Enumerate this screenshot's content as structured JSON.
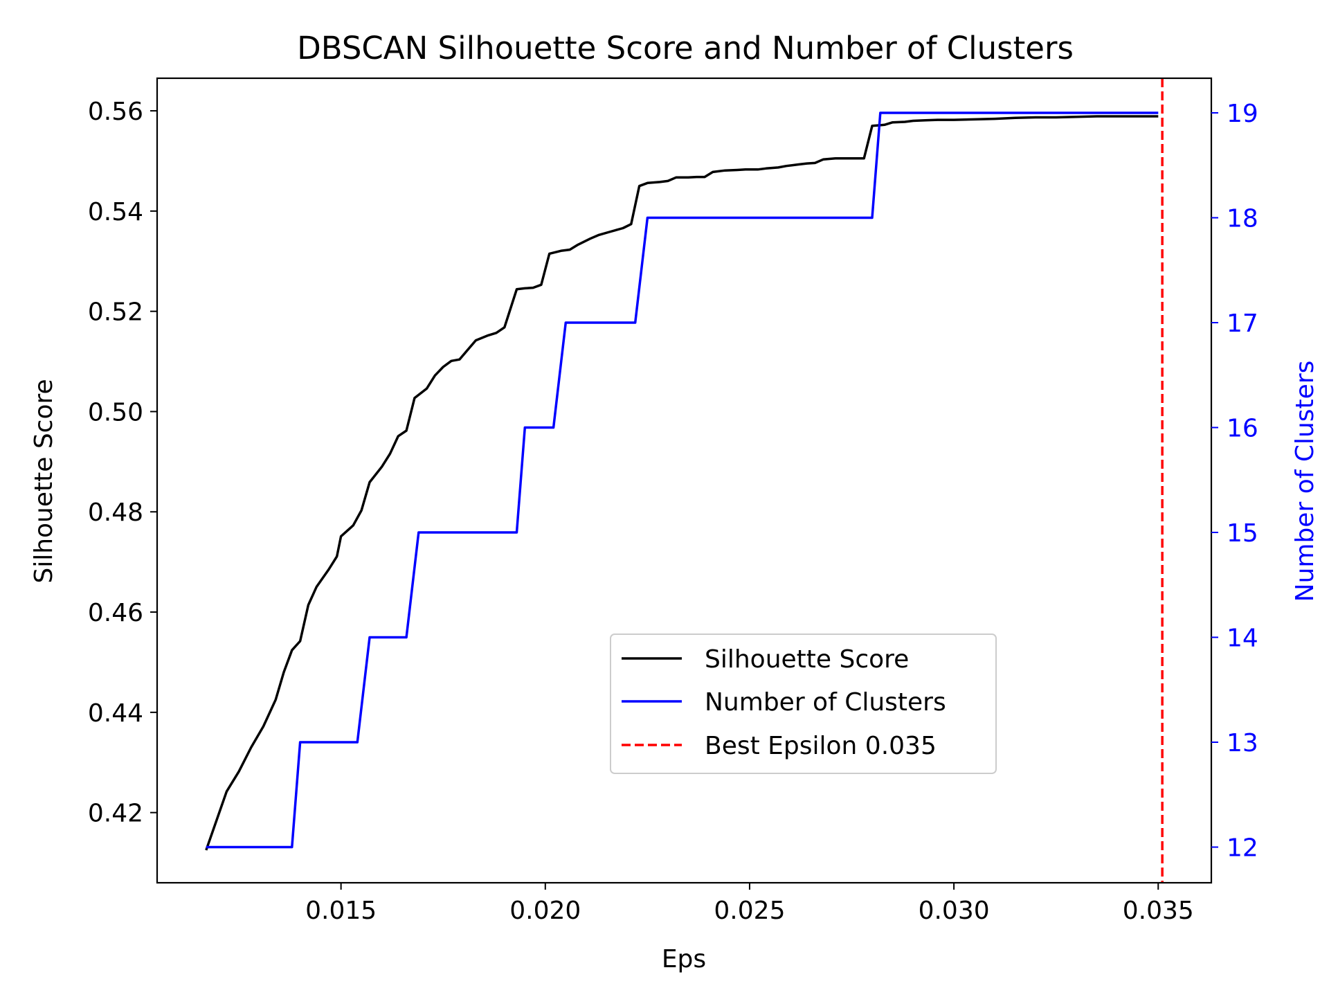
{
  "chart_data": {
    "type": "line",
    "title": "DBSCAN Silhouette Score and Number of Clusters",
    "xlabel": "Eps",
    "ylabel_left": "Silhouette Score",
    "ylabel_right": "Number of Clusters",
    "xlim": [
      0.0105,
      0.0363
    ],
    "ylim_left": [
      0.406,
      0.5665
    ],
    "ylim_right": [
      11.66,
      19.33
    ],
    "x_ticks": [
      {
        "value": 0.015,
        "label": "0.015"
      },
      {
        "value": 0.02,
        "label": "0.020"
      },
      {
        "value": 0.025,
        "label": "0.025"
      },
      {
        "value": 0.03,
        "label": "0.030"
      },
      {
        "value": 0.035,
        "label": "0.035"
      }
    ],
    "y_left_ticks": [
      {
        "value": 0.42,
        "label": "0.42"
      },
      {
        "value": 0.44,
        "label": "0.44"
      },
      {
        "value": 0.46,
        "label": "0.46"
      },
      {
        "value": 0.48,
        "label": "0.48"
      },
      {
        "value": 0.5,
        "label": "0.50"
      },
      {
        "value": 0.52,
        "label": "0.52"
      },
      {
        "value": 0.54,
        "label": "0.54"
      },
      {
        "value": 0.56,
        "label": "0.56"
      }
    ],
    "y_right_ticks": [
      {
        "value": 12,
        "label": "12"
      },
      {
        "value": 13,
        "label": "13"
      },
      {
        "value": 14,
        "label": "14"
      },
      {
        "value": 15,
        "label": "15"
      },
      {
        "value": 16,
        "label": "16"
      },
      {
        "value": 17,
        "label": "17"
      },
      {
        "value": 18,
        "label": "18"
      },
      {
        "value": 19,
        "label": "19"
      }
    ],
    "series": [
      {
        "name": "Silhouette Score",
        "axis": "left",
        "color": "#000000",
        "dash": "solid",
        "points": [
          [
            0.0117,
            0.4125
          ],
          [
            0.0122,
            0.4242
          ],
          [
            0.0125,
            0.4282
          ],
          [
            0.0128,
            0.433
          ],
          [
            0.0131,
            0.4372
          ],
          [
            0.0134,
            0.4425
          ],
          [
            0.0136,
            0.448
          ],
          [
            0.0138,
            0.4524
          ],
          [
            0.014,
            0.4542
          ],
          [
            0.0142,
            0.4614
          ],
          [
            0.0144,
            0.465
          ],
          [
            0.0147,
            0.4685
          ],
          [
            0.0149,
            0.4711
          ],
          [
            0.015,
            0.4751
          ],
          [
            0.0153,
            0.4773
          ],
          [
            0.0155,
            0.4803
          ],
          [
            0.0157,
            0.4859
          ],
          [
            0.016,
            0.489
          ],
          [
            0.0162,
            0.4916
          ],
          [
            0.0164,
            0.4951
          ],
          [
            0.0166,
            0.4962
          ],
          [
            0.0168,
            0.5027
          ],
          [
            0.0171,
            0.5046
          ],
          [
            0.0173,
            0.5072
          ],
          [
            0.0175,
            0.5089
          ],
          [
            0.0177,
            0.5101
          ],
          [
            0.0179,
            0.5104
          ],
          [
            0.0181,
            0.5123
          ],
          [
            0.0183,
            0.5142
          ],
          [
            0.0186,
            0.5152
          ],
          [
            0.0188,
            0.5157
          ],
          [
            0.019,
            0.5168
          ],
          [
            0.0193,
            0.5244
          ],
          [
            0.0195,
            0.5246
          ],
          [
            0.0197,
            0.5247
          ],
          [
            0.0199,
            0.5253
          ],
          [
            0.0201,
            0.5315
          ],
          [
            0.0204,
            0.5321
          ],
          [
            0.0206,
            0.5323
          ],
          [
            0.0208,
            0.5333
          ],
          [
            0.0211,
            0.5345
          ],
          [
            0.0213,
            0.5352
          ],
          [
            0.0216,
            0.5359
          ],
          [
            0.0219,
            0.5366
          ],
          [
            0.0221,
            0.5374
          ],
          [
            0.0223,
            0.545
          ],
          [
            0.0225,
            0.5456
          ],
          [
            0.0228,
            0.5458
          ],
          [
            0.023,
            0.546
          ],
          [
            0.0232,
            0.5467
          ],
          [
            0.0235,
            0.5467
          ],
          [
            0.0237,
            0.5468
          ],
          [
            0.0239,
            0.5468
          ],
          [
            0.0241,
            0.5478
          ],
          [
            0.0244,
            0.5481
          ],
          [
            0.0247,
            0.5482
          ],
          [
            0.0249,
            0.5483
          ],
          [
            0.0252,
            0.5483
          ],
          [
            0.0254,
            0.5485
          ],
          [
            0.0257,
            0.5487
          ],
          [
            0.0259,
            0.549
          ],
          [
            0.0262,
            0.5493
          ],
          [
            0.0264,
            0.5495
          ],
          [
            0.0266,
            0.5496
          ],
          [
            0.0268,
            0.5503
          ],
          [
            0.0271,
            0.5505
          ],
          [
            0.0273,
            0.5505
          ],
          [
            0.0275,
            0.5505
          ],
          [
            0.0278,
            0.5505
          ],
          [
            0.028,
            0.557
          ],
          [
            0.0283,
            0.5572
          ],
          [
            0.0285,
            0.5577
          ],
          [
            0.0288,
            0.5578
          ],
          [
            0.029,
            0.558
          ],
          [
            0.0293,
            0.5581
          ],
          [
            0.0296,
            0.5582
          ],
          [
            0.03,
            0.5582
          ],
          [
            0.0305,
            0.5583
          ],
          [
            0.031,
            0.5584
          ],
          [
            0.0315,
            0.5586
          ],
          [
            0.032,
            0.5587
          ],
          [
            0.0325,
            0.5587
          ],
          [
            0.033,
            0.5588
          ],
          [
            0.0335,
            0.5589
          ],
          [
            0.034,
            0.5589
          ],
          [
            0.0345,
            0.5589
          ],
          [
            0.035,
            0.5589
          ]
        ]
      },
      {
        "name": "Number of Clusters",
        "axis": "right",
        "color": "#0000ff",
        "dash": "solid",
        "points": [
          [
            0.0117,
            12
          ],
          [
            0.0138,
            12
          ],
          [
            0.014,
            13
          ],
          [
            0.0154,
            13
          ],
          [
            0.0157,
            14
          ],
          [
            0.0166,
            14
          ],
          [
            0.0169,
            15
          ],
          [
            0.0193,
            15
          ],
          [
            0.0195,
            16
          ],
          [
            0.0202,
            16
          ],
          [
            0.0205,
            17
          ],
          [
            0.0222,
            17
          ],
          [
            0.0225,
            18
          ],
          [
            0.028,
            18
          ],
          [
            0.0282,
            19
          ],
          [
            0.035,
            19
          ]
        ]
      },
      {
        "name": "Best Epsilon 0.035",
        "axis": "vline",
        "color": "#ff0000",
        "dash": "dashed",
        "x": 0.0351
      }
    ],
    "legend": {
      "position": "lower-center-right",
      "entries": [
        "Silhouette Score",
        "Number of Clusters",
        "Best Epsilon 0.035"
      ]
    },
    "grid": false,
    "colors": {
      "left_axis": "#000000",
      "right_axis": "#0000ff"
    }
  }
}
